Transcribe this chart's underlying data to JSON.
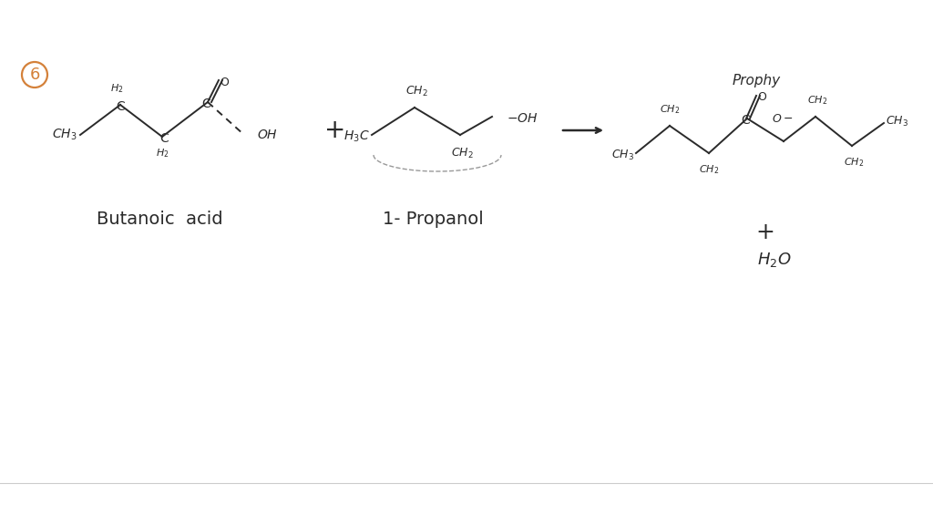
{
  "background_color": "#ffffff",
  "figure_size": [
    10.24,
    5.76
  ],
  "dpi": 100,
  "circle_number": "6",
  "circle_color": "#d4813a",
  "label_butanoic": "Butanoic  acid",
  "label_propanol": "1- Propanol",
  "label_propby": "Prophy",
  "text_color": "#2a2a2a",
  "line_color": "#2a2a2a"
}
